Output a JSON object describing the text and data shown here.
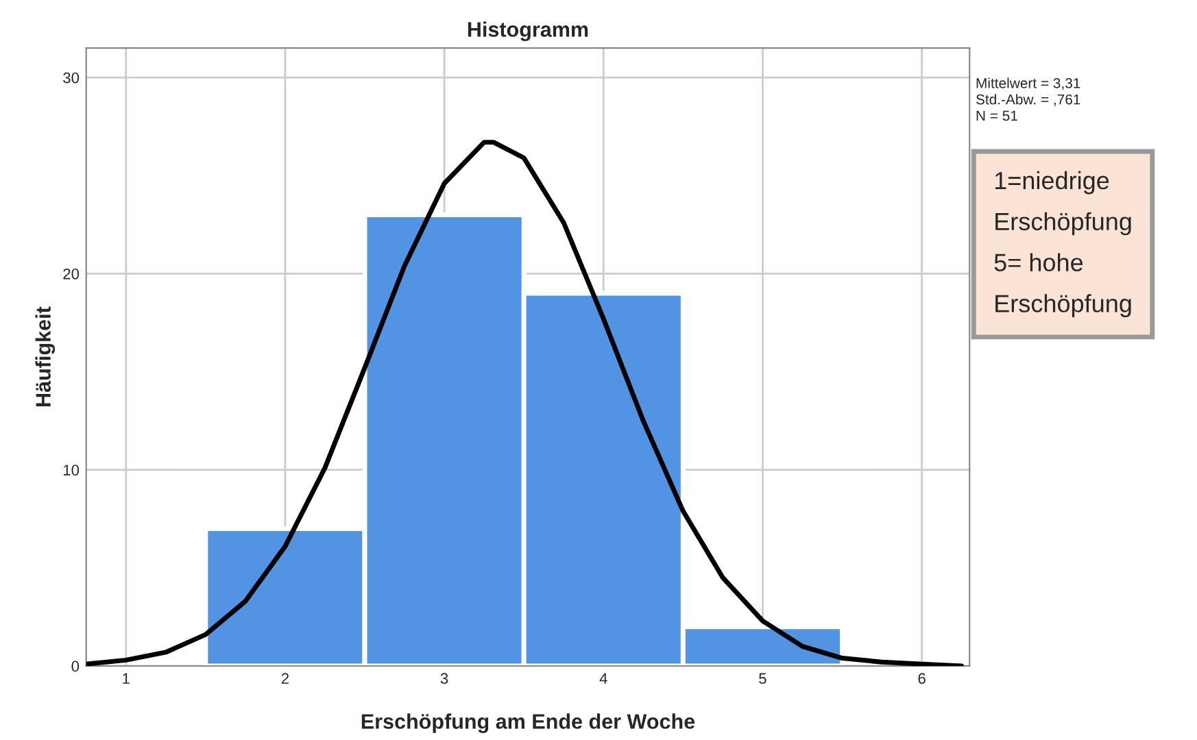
{
  "chart_data": {
    "type": "histogram",
    "title": "Histogramm",
    "xlabel": "Erschöpfung am Ende der Woche",
    "ylabel": "Häufigkeit",
    "bins": [
      1.5,
      2.5,
      3.5,
      4.5,
      5.5
    ],
    "values": [
      7,
      23,
      19,
      2
    ],
    "color": "#5393e4",
    "series": [
      {
        "type": "line",
        "color": "#000000",
        "x": [
          0.75,
          1.0,
          1.25,
          1.5,
          1.75,
          2.0,
          2.25,
          2.5,
          2.75,
          3.0,
          3.25,
          3.31,
          3.5,
          3.75,
          4.0,
          4.25,
          4.5,
          4.75,
          5.0,
          5.25,
          5.5,
          5.75,
          6.0,
          6.25
        ],
        "values": [
          0.1,
          0.3,
          0.7,
          1.6,
          3.3,
          6.1,
          10.1,
          15.2,
          20.4,
          24.6,
          26.7,
          26.7,
          25.9,
          22.6,
          17.7,
          12.5,
          7.9,
          4.5,
          2.3,
          1.0,
          0.4,
          0.2,
          0.1,
          0.0
        ]
      }
    ],
    "xlim": [
      0.75,
      6.3
    ],
    "xticks": [
      1,
      2,
      3,
      4,
      5,
      6
    ],
    "ylim": [
      0,
      31.5
    ],
    "yticks": [
      0,
      10,
      20,
      30
    ],
    "grid": true,
    "annotations": [
      "Mittelwert = 3,31",
      "Std.-Abw. = ,761",
      "N = 51",
      "1=niedrige\nErschöpfung\n5= hohe\nErschöpfung"
    ]
  }
}
